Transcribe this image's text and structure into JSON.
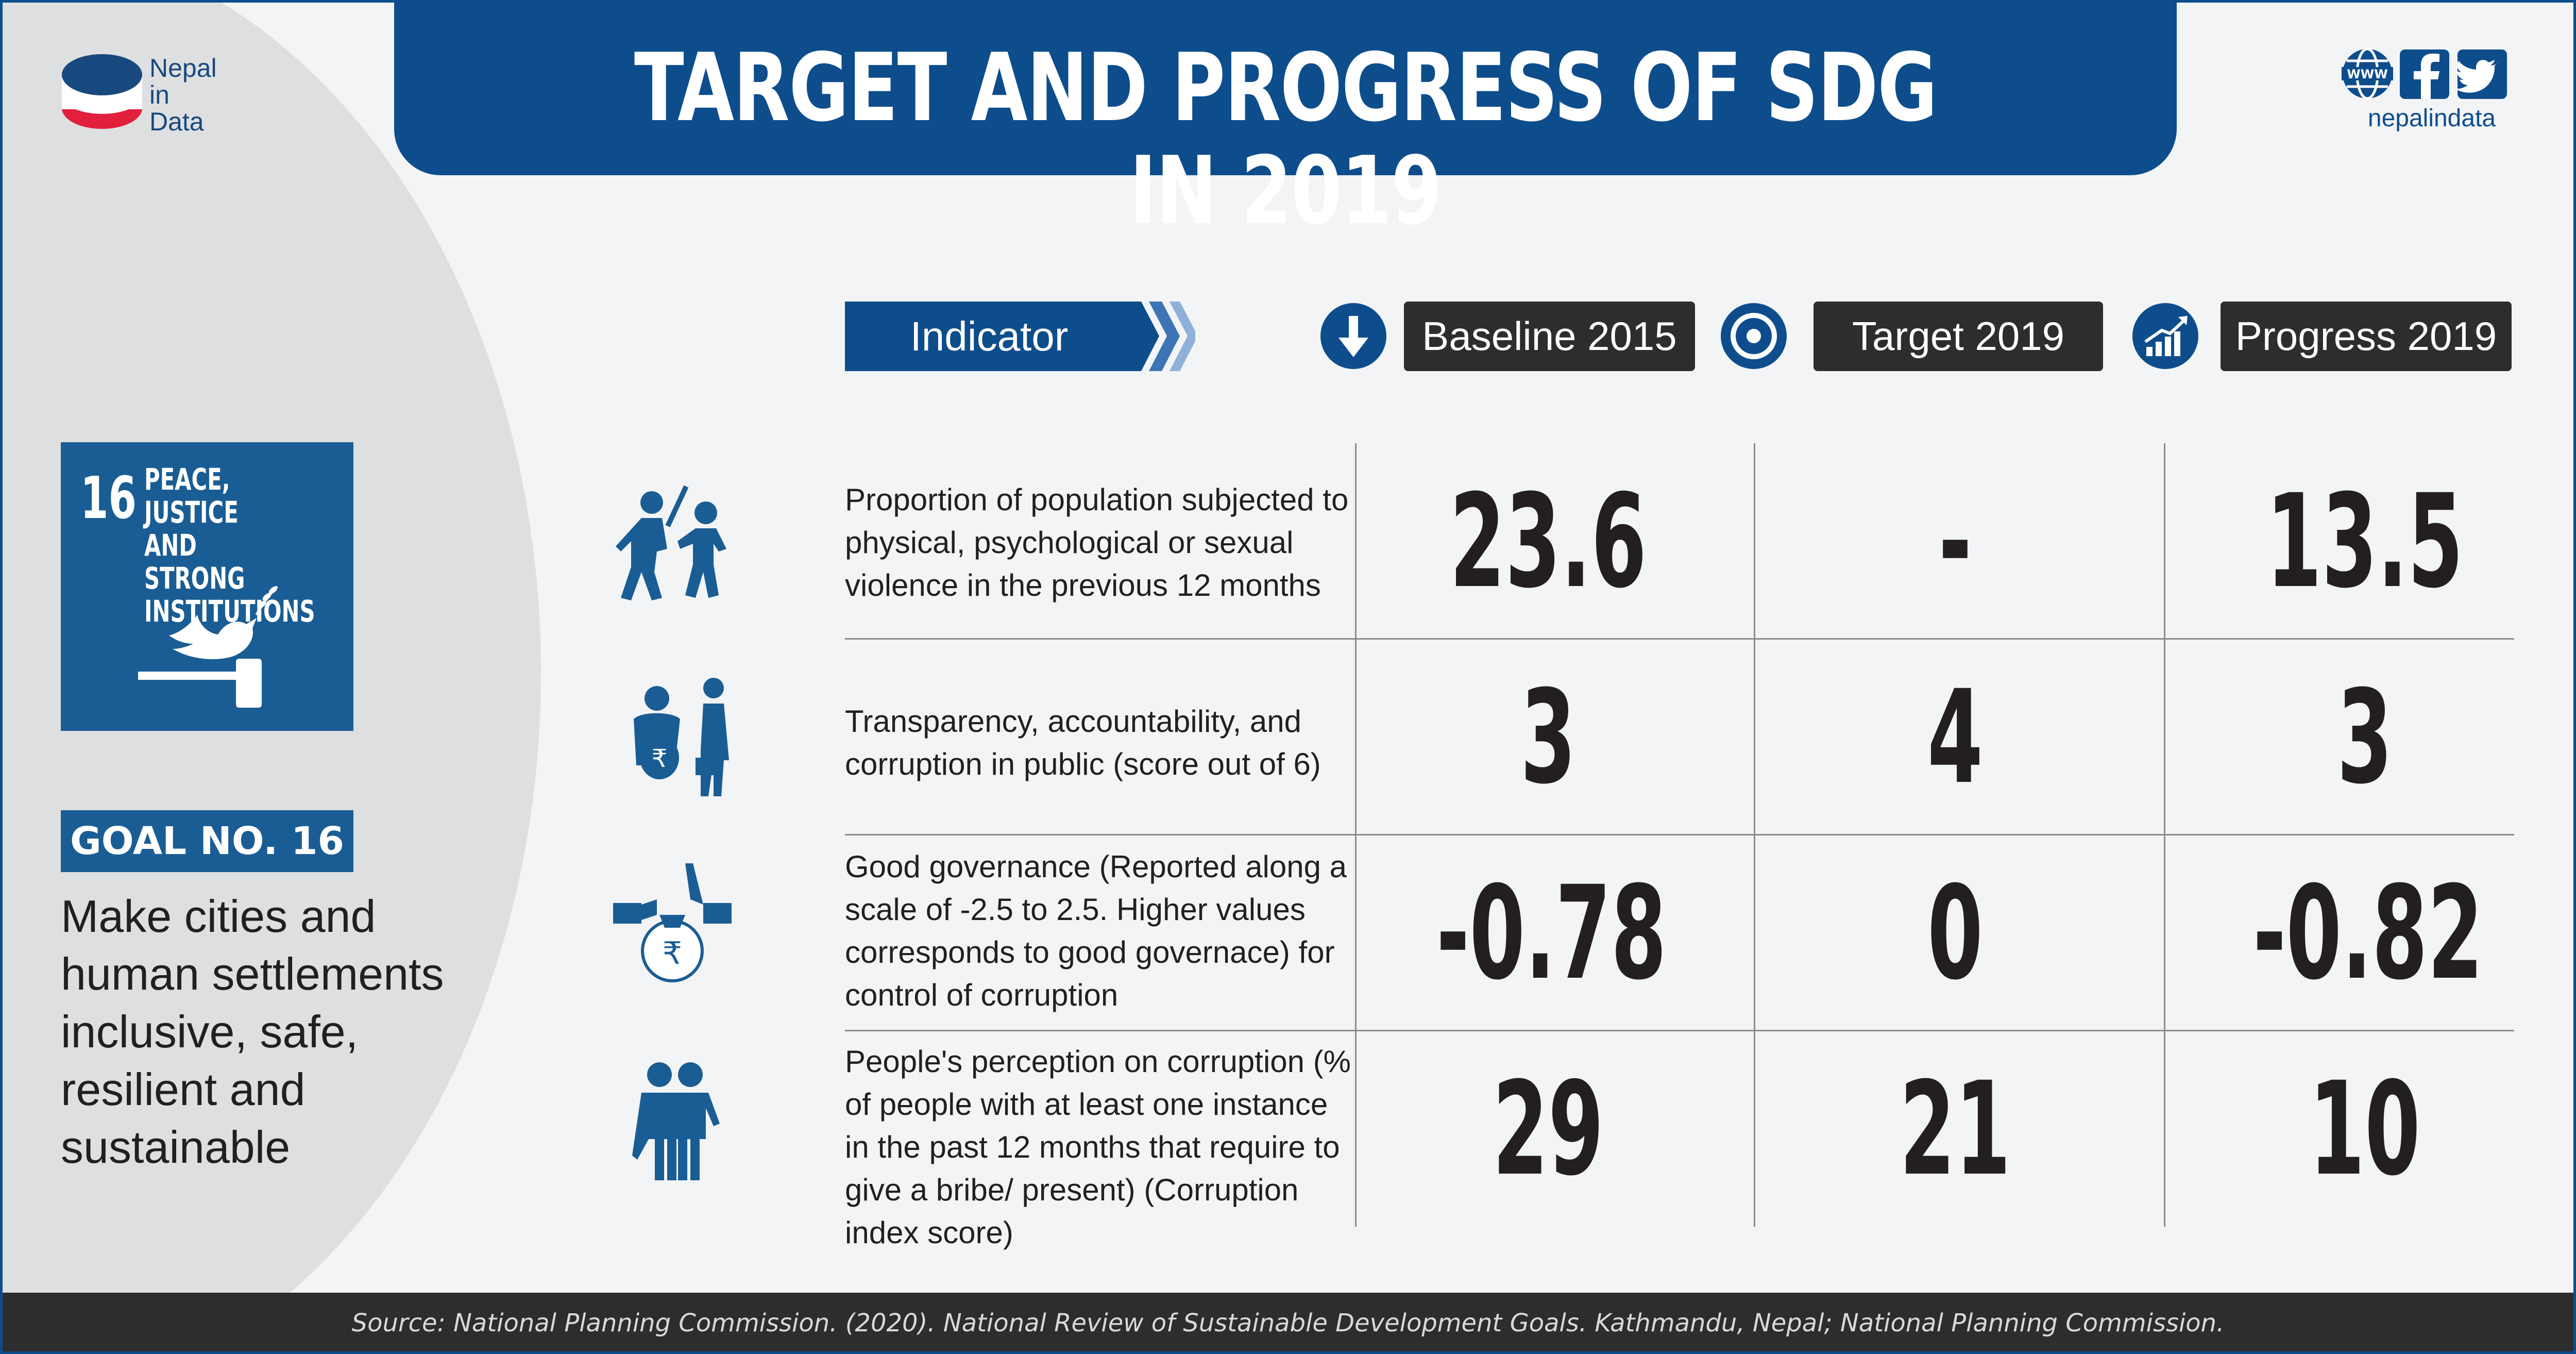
{
  "logo": {
    "line1": "Nepal",
    "line2": "in",
    "line3": "Data"
  },
  "title": "TARGET AND PROGRESS OF SDG IN 2019",
  "social": {
    "handle": "nepalindata",
    "icons": [
      "globe-www-icon",
      "facebook-icon",
      "twitter-icon"
    ]
  },
  "sdg": {
    "number": "16",
    "label_lines": [
      "PEACE, JUSTICE",
      "AND STRONG",
      "INSTITUTIONS"
    ],
    "icon": "dove-gavel-icon"
  },
  "goal": {
    "badge": "GOAL NO. 16",
    "description": "Make cities and human settlements inclusive, safe, resilient and sustainable"
  },
  "table": {
    "indicator_header": "Indicator",
    "columns": [
      {
        "label": "Baseline 2015",
        "icon": "arrow-down-icon"
      },
      {
        "label": "Target 2019",
        "icon": "target-icon"
      },
      {
        "label": "Progress 2019",
        "icon": "growth-chart-icon"
      }
    ],
    "rows": [
      {
        "icon": "violence-icon",
        "indicator": "Proportion of population subjected to physical, psychological or sexual violence in the previous 12 months",
        "baseline": "23.6",
        "target": "-",
        "progress": "13.5"
      },
      {
        "icon": "bribery-icon",
        "indicator": "Transparency, accountability, and corruption in public (score out of 6)",
        "baseline": "3",
        "target": "4",
        "progress": "3"
      },
      {
        "icon": "money-bag-handshake-icon",
        "indicator": "Good governance (Reported along a scale of -2.5 to 2.5. Higher values corresponds to good governace) for control of corruption",
        "baseline": "-0.78",
        "target": "0",
        "progress": "-0.82"
      },
      {
        "icon": "people-group-icon",
        "indicator": "People's perception on corruption (% of people with at least one instance in the past 12 months that require to give a bribe/ present) (Corruption index score)",
        "baseline": "29",
        "target": "21",
        "progress": "10"
      }
    ]
  },
  "source": "Source: National Planning Commission. (2020). National Review of Sustainable Development Goals. Kathmandu, Nepal; National Planning Commission.",
  "colors": {
    "primary_blue": "#0e4d8c",
    "dark": "#2d2d2e",
    "sdg_blue": "#1a5d94",
    "logo_red": "#e21f3d"
  }
}
